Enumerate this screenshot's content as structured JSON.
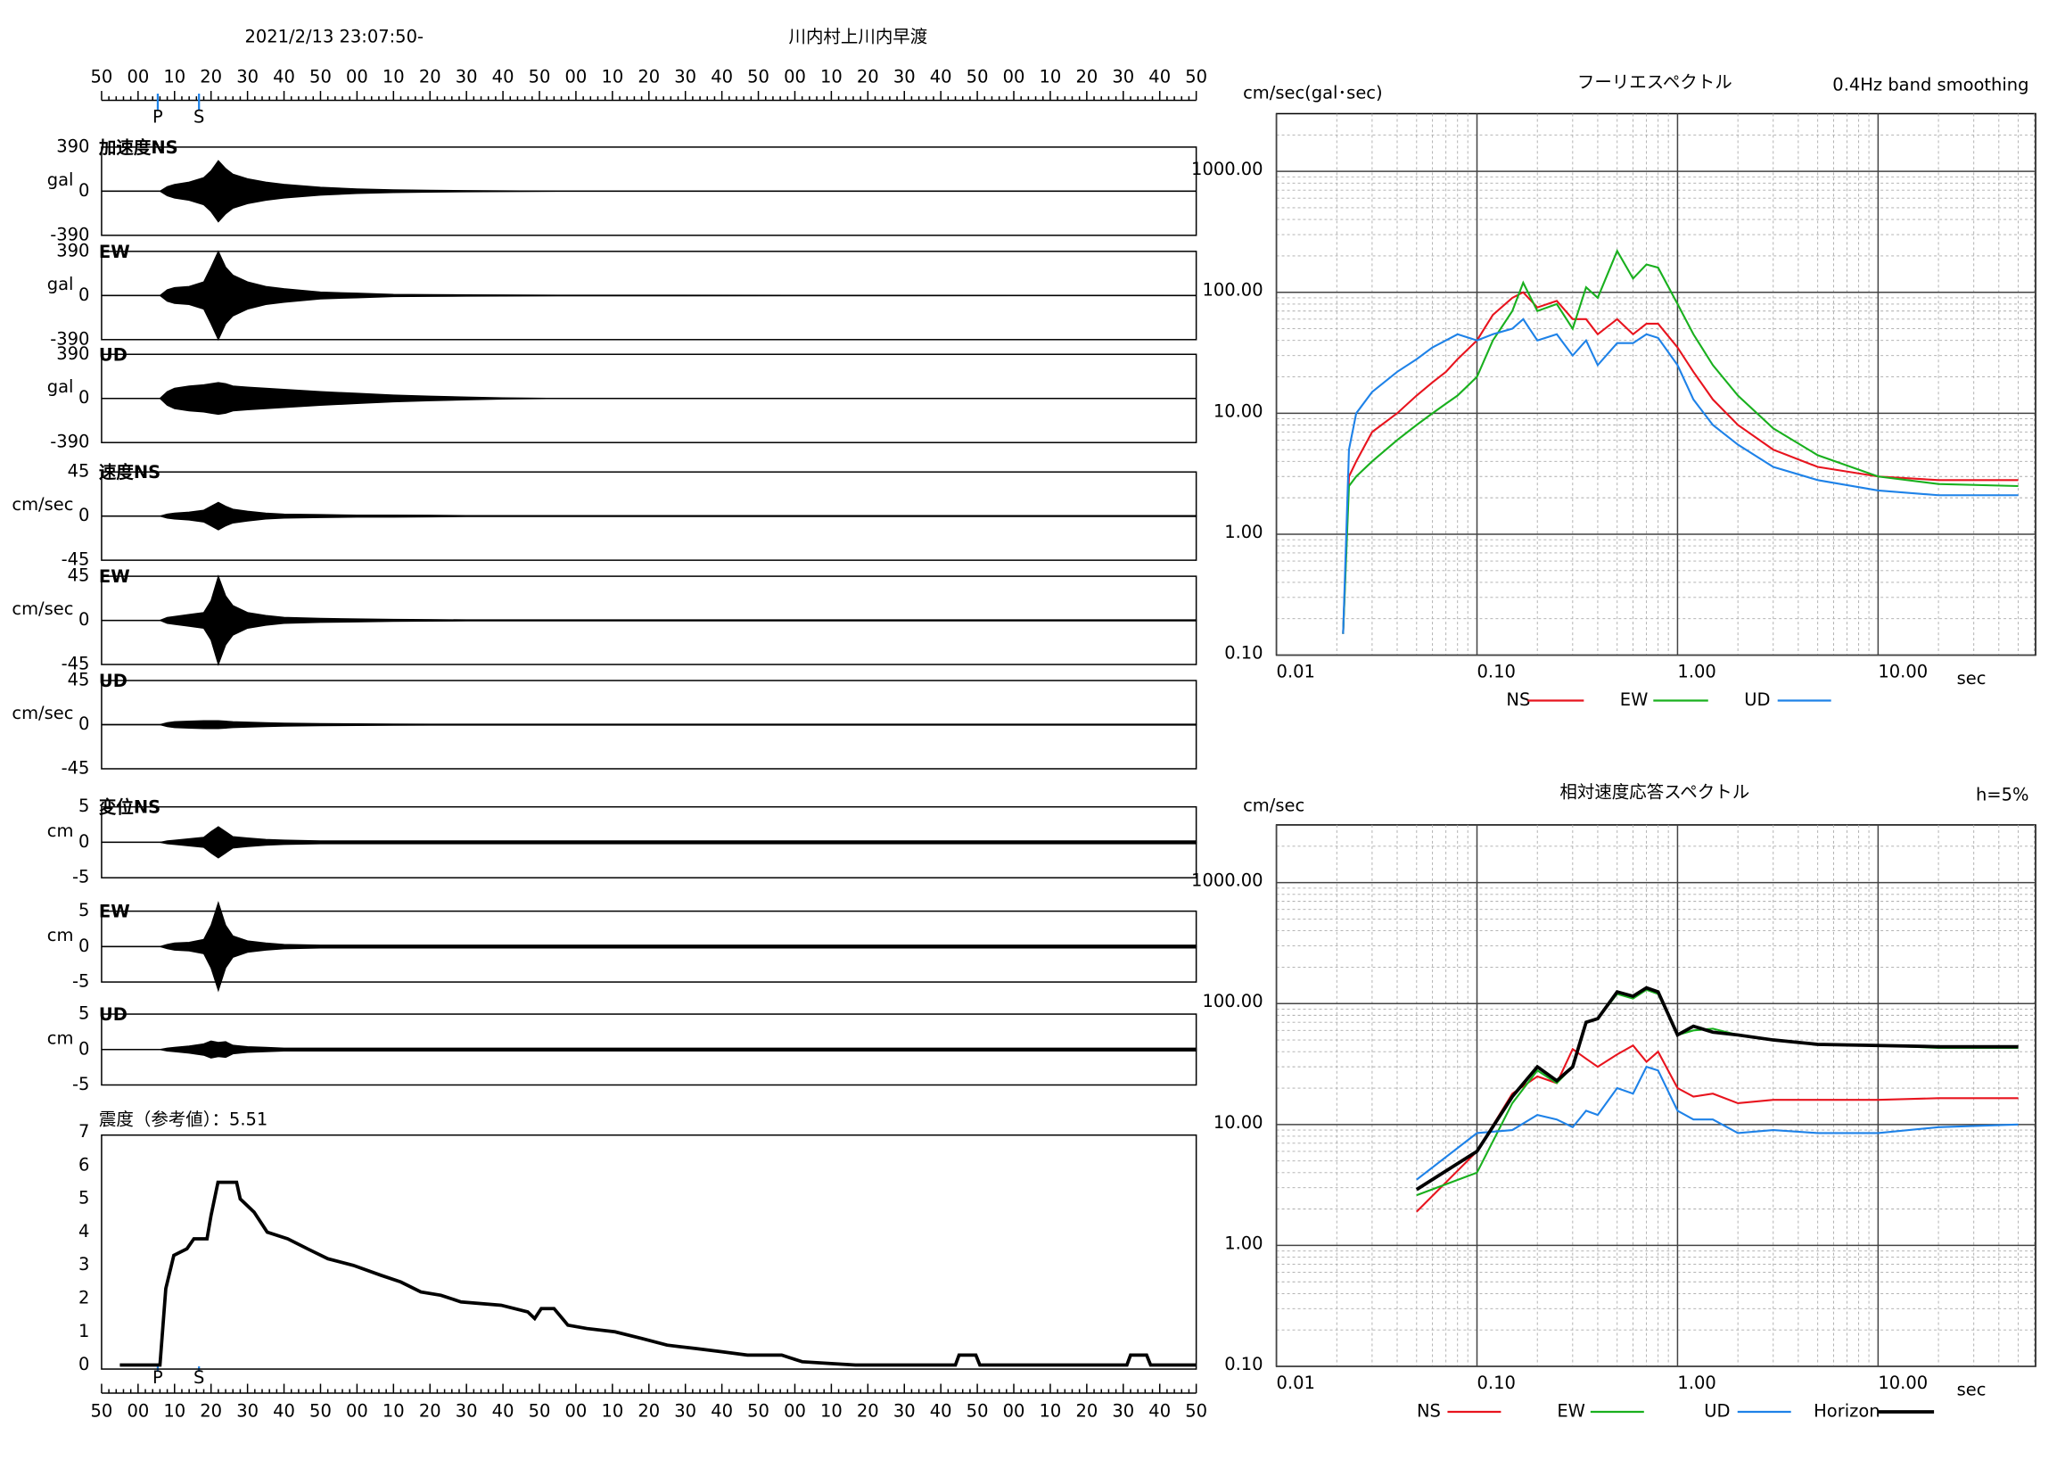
{
  "chart_data": [
    {
      "type": "waveform",
      "title": "2021/2/13 23:07:50-",
      "subtitle": "川内村上川内早渡",
      "xlim": [
        0,
        300
      ],
      "xticks": [
        {
          "value": 0,
          "label": "50"
        },
        {
          "value": 10,
          "label": "00"
        },
        {
          "value": 20,
          "label": "10"
        },
        {
          "value": 30,
          "label": "20"
        },
        {
          "value": 40,
          "label": "30"
        },
        {
          "value": 50,
          "label": "40"
        },
        {
          "value": 60,
          "label": "50"
        },
        {
          "value": 70,
          "label": "00"
        },
        {
          "value": 80,
          "label": "10"
        },
        {
          "value": 90,
          "label": "20"
        },
        {
          "value": 100,
          "label": "30"
        },
        {
          "value": 110,
          "label": "40"
        },
        {
          "value": 120,
          "label": "50"
        },
        {
          "value": 130,
          "label": "00"
        },
        {
          "value": 140,
          "label": "10"
        },
        {
          "value": 150,
          "label": "20"
        },
        {
          "value": 160,
          "label": "30"
        },
        {
          "value": 170,
          "label": "40"
        },
        {
          "value": 180,
          "label": "50"
        },
        {
          "value": 190,
          "label": "00"
        },
        {
          "value": 200,
          "label": "10"
        },
        {
          "value": 210,
          "label": "20"
        },
        {
          "value": 220,
          "label": "30"
        },
        {
          "value": 230,
          "label": "40"
        },
        {
          "value": 240,
          "label": "50"
        },
        {
          "value": 250,
          "label": "00"
        },
        {
          "value": 260,
          "label": "10"
        },
        {
          "value": 270,
          "label": "20"
        },
        {
          "value": 280,
          "label": "30"
        },
        {
          "value": 290,
          "label": "40"
        },
        {
          "value": 300,
          "label": "50"
        }
      ],
      "phases": [
        {
          "label": "P",
          "x": 15.4
        },
        {
          "label": "S",
          "x": 26.7
        }
      ],
      "phase_color": "#1e82e8",
      "x": [
        0,
        16,
        18,
        20,
        24,
        28,
        30,
        32,
        34,
        36,
        40,
        45,
        50,
        60,
        70,
        80,
        90,
        100,
        110,
        125,
        300
      ],
      "panels": [
        {
          "name": "加速度NS",
          "unit": "gal",
          "ylim": [
            -390,
            390
          ],
          "yticks": [
            390,
            0,
            -390
          ],
          "values": [
            0,
            0,
            40,
            60,
            80,
            120,
            180,
            270,
            200,
            150,
            110,
            80,
            60,
            35,
            20,
            12,
            8,
            5,
            3,
            0,
            0
          ]
        },
        {
          "name": "EW",
          "unit": "gal",
          "ylim": [
            -390,
            390
          ],
          "yticks": [
            390,
            0,
            -390
          ],
          "values": [
            0,
            0,
            50,
            70,
            80,
            120,
            250,
            390,
            250,
            180,
            120,
            80,
            60,
            30,
            20,
            10,
            8,
            6,
            5,
            3,
            0
          ]
        },
        {
          "name": "UD",
          "unit": "gal",
          "ylim": [
            -390,
            390
          ],
          "yticks": [
            390,
            0,
            -390
          ],
          "values": [
            0,
            0,
            60,
            90,
            110,
            120,
            130,
            140,
            130,
            110,
            100,
            90,
            80,
            60,
            45,
            30,
            20,
            12,
            5,
            0,
            0
          ]
        },
        {
          "name": "速度NS",
          "unit": "cm/sec",
          "ylim": [
            -45,
            45
          ],
          "yticks": [
            45,
            0,
            -45
          ],
          "values": [
            0,
            0,
            2,
            3,
            4,
            6,
            10,
            14,
            10,
            7,
            5,
            3,
            2,
            1.5,
            1,
            1,
            0.8,
            0.5,
            0.5,
            0.5,
            0.5
          ]
        },
        {
          "name": "EW",
          "unit": "cm/sec",
          "ylim": [
            -45,
            45
          ],
          "yticks": [
            45,
            0,
            -45
          ],
          "values": [
            0,
            0,
            3,
            4,
            6,
            8,
            20,
            45,
            25,
            15,
            8,
            5,
            3,
            2,
            1.5,
            1,
            0.8,
            0.5,
            0.5,
            0.5,
            0.5
          ]
        },
        {
          "name": "UD",
          "unit": "cm/sec",
          "ylim": [
            -45,
            45
          ],
          "yticks": [
            45,
            0,
            -45
          ],
          "values": [
            0,
            0,
            2,
            3,
            3.5,
            4,
            4,
            4,
            3.5,
            3,
            2.5,
            2,
            1.5,
            1,
            0.8,
            0.6,
            0.5,
            0.5,
            0.5,
            0.5,
            0.5
          ]
        },
        {
          "name": "変位NS",
          "unit": "cm",
          "ylim": [
            -5,
            5
          ],
          "yticks": [
            5,
            0,
            -5
          ],
          "values": [
            0,
            0,
            0.2,
            0.3,
            0.5,
            0.7,
            1.5,
            2.2,
            1.5,
            0.8,
            0.6,
            0.4,
            0.3,
            0.2,
            0.2,
            0.2,
            0.2,
            0.2,
            0.2,
            0.2,
            0.2
          ]
        },
        {
          "name": "EW",
          "unit": "cm",
          "ylim": [
            -5,
            5
          ],
          "yticks": [
            5,
            0,
            -5
          ],
          "values": [
            0,
            0,
            0.3,
            0.5,
            0.6,
            1,
            3,
            6.2,
            3,
            1.5,
            0.8,
            0.5,
            0.3,
            0.2,
            0.2,
            0.2,
            0.2,
            0.2,
            0.2,
            0.2,
            0.2
          ]
        },
        {
          "name": "UD",
          "unit": "cm",
          "ylim": [
            -5,
            5
          ],
          "yticks": [
            5,
            0,
            -5
          ],
          "values": [
            0,
            0,
            0.2,
            0.3,
            0.5,
            0.8,
            1.2,
            1.0,
            1.1,
            0.6,
            0.4,
            0.3,
            0.2,
            0.2,
            0.2,
            0.2,
            0.2,
            0.2,
            0.2,
            0.2,
            0.2
          ]
        }
      ],
      "intensity": {
        "title": "震度（参考値）：5.51",
        "ylim": [
          0,
          7
        ],
        "yticks": [
          0,
          1,
          2,
          3,
          4,
          5,
          6,
          7
        ],
        "x": [
          5,
          16,
          17.6,
          19.8,
          23.4,
          25.3,
          28.9,
          30,
          31.9,
          37,
          38,
          41.8,
          45.4,
          51,
          56.4,
          62,
          69,
          76.6,
          82,
          87.5,
          93,
          98.5,
          109.5,
          116.8,
          118.7,
          120.5,
          124,
          127.8,
          133,
          140.7,
          148,
          155,
          162.6,
          170,
          177,
          186.4,
          192,
          199,
          206.6,
          234,
          235,
          239.6,
          240.7,
          281,
          282,
          286.4,
          287.5,
          300
        ],
        "values": [
          0,
          0,
          2.3,
          3.3,
          3.5,
          3.8,
          3.8,
          4.5,
          5.5,
          5.5,
          5.0,
          4.6,
          4.0,
          3.8,
          3.5,
          3.2,
          3.0,
          2.7,
          2.5,
          2.2,
          2.1,
          1.9,
          1.8,
          1.6,
          1.4,
          1.7,
          1.7,
          1.2,
          1.1,
          1.0,
          0.8,
          0.6,
          0.5,
          0.4,
          0.3,
          0.3,
          0.1,
          0.05,
          0,
          0,
          0.3,
          0.3,
          0,
          0,
          0.3,
          0.3,
          0,
          0
        ]
      }
    },
    {
      "type": "loglog",
      "title": "フーリエスペクトル",
      "subtitle": "0.4Hz band smoothing",
      "y_label": "cm/sec(gal･sec)",
      "x_label": "sec",
      "xlim": [
        0.01,
        61
      ],
      "ylim": [
        0.1,
        3000
      ],
      "log_x": true,
      "log_y": true,
      "grid": true,
      "minor_grid": true,
      "xticks": [
        {
          "value": 0.01,
          "label": "0.01"
        },
        {
          "value": 0.1,
          "label": "0.10"
        },
        {
          "value": 1,
          "label": "1.00"
        },
        {
          "value": 10,
          "label": "10.00"
        }
      ],
      "yticks": [
        {
          "value": 0.1,
          "label": "0.10"
        },
        {
          "value": 1,
          "label": "1.00"
        },
        {
          "value": 10,
          "label": "10.00"
        },
        {
          "value": 100,
          "label": "100.00"
        },
        {
          "value": 1000,
          "label": "1000.00"
        }
      ],
      "x": [
        0.0215,
        0.023,
        0.025,
        0.03,
        0.04,
        0.05,
        0.06,
        0.07,
        0.08,
        0.1,
        0.12,
        0.15,
        0.17,
        0.2,
        0.25,
        0.3,
        0.35,
        0.4,
        0.5,
        0.6,
        0.7,
        0.8,
        1.0,
        1.2,
        1.5,
        2,
        3,
        5,
        10,
        20,
        50
      ],
      "series": [
        {
          "name": "NS",
          "color": "#e8141e",
          "values": [
            0.15,
            3,
            4,
            7,
            10,
            14,
            18,
            22,
            28,
            40,
            65,
            90,
            100,
            75,
            85,
            60,
            60,
            45,
            60,
            45,
            55,
            55,
            35,
            22,
            13,
            8,
            5,
            3.6,
            3,
            2.8,
            2.8
          ]
        },
        {
          "name": "EW",
          "color": "#19b01e",
          "values": [
            0.15,
            2.5,
            3,
            4,
            6,
            8,
            10,
            12,
            14,
            20,
            40,
            70,
            120,
            70,
            80,
            50,
            110,
            90,
            220,
            130,
            170,
            160,
            80,
            45,
            25,
            14,
            7.5,
            4.5,
            3,
            2.6,
            2.5
          ]
        },
        {
          "name": "UD",
          "color": "#1e82e8",
          "values": [
            0.15,
            5,
            10,
            15,
            22,
            28,
            35,
            40,
            45,
            40,
            45,
            50,
            60,
            40,
            45,
            30,
            40,
            25,
            38,
            38,
            45,
            42,
            25,
            13,
            8,
            5.5,
            3.6,
            2.8,
            2.3,
            2.1,
            2.1
          ]
        }
      ]
    },
    {
      "type": "loglog",
      "title": "相対速度応答スペクトル",
      "subtitle": "h=5%",
      "y_label": "cm/sec",
      "x_label": "sec",
      "xlim": [
        0.01,
        61
      ],
      "ylim": [
        0.1,
        3000
      ],
      "log_x": true,
      "log_y": true,
      "grid": true,
      "minor_grid": true,
      "xticks": [
        {
          "value": 0.01,
          "label": "0.01"
        },
        {
          "value": 0.1,
          "label": "0.10"
        },
        {
          "value": 1,
          "label": "1.00"
        },
        {
          "value": 10,
          "label": "10.00"
        }
      ],
      "yticks": [
        {
          "value": 0.1,
          "label": "0.10"
        },
        {
          "value": 1,
          "label": "1.00"
        },
        {
          "value": 10,
          "label": "10.00"
        },
        {
          "value": 100,
          "label": "100.00"
        },
        {
          "value": 1000,
          "label": "1000.00"
        }
      ],
      "x": [
        0.05,
        0.1,
        0.15,
        0.2,
        0.25,
        0.3,
        0.35,
        0.4,
        0.5,
        0.6,
        0.7,
        0.8,
        1.0,
        1.2,
        1.5,
        2,
        3,
        5,
        10,
        20,
        50
      ],
      "series": [
        {
          "name": "NS",
          "color": "#e8141e",
          "values": [
            1.9,
            6,
            18,
            25,
            22,
            42,
            35,
            30,
            38,
            45,
            33,
            40,
            20,
            17,
            18,
            15,
            16,
            16,
            16,
            16.5,
            16.5
          ]
        },
        {
          "name": "EW",
          "color": "#19b01e",
          "values": [
            2.6,
            4,
            15,
            28,
            22,
            30,
            70,
            75,
            120,
            110,
            130,
            120,
            55,
            60,
            62,
            55,
            50,
            46,
            45,
            43,
            43
          ]
        },
        {
          "name": "UD",
          "color": "#1e82e8",
          "values": [
            3.5,
            8.5,
            9,
            12,
            11,
            9.5,
            13,
            12,
            20,
            18,
            30,
            28,
            13,
            11,
            11,
            8.5,
            9,
            8.5,
            8.5,
            9.5,
            10
          ]
        },
        {
          "name": "Horizon",
          "color": "#000000",
          "values": [
            2.9,
            6,
            17,
            30,
            23,
            30,
            70,
            75,
            125,
            115,
            135,
            125,
            55,
            65,
            58,
            55,
            50,
            46,
            45,
            44,
            44
          ]
        }
      ]
    }
  ]
}
